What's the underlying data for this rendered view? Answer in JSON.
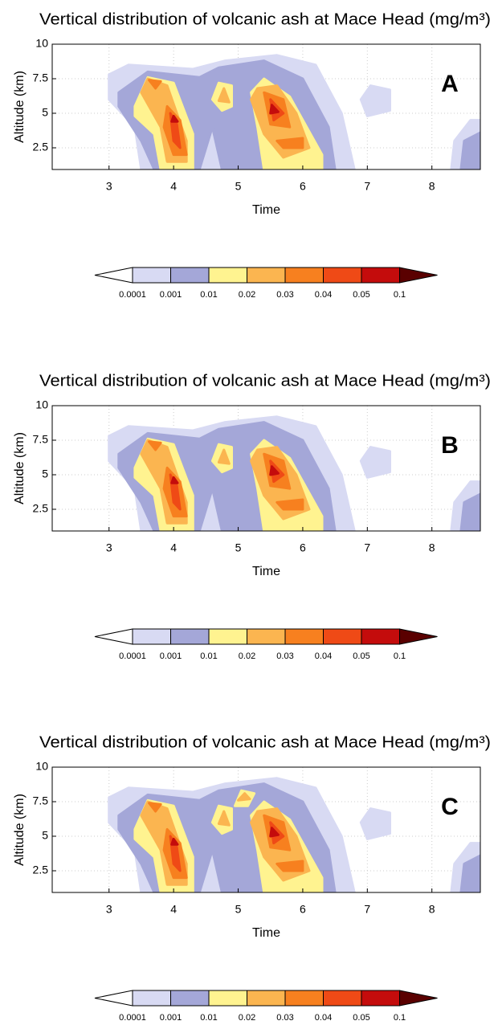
{
  "chart_data": [
    {
      "type": "contour",
      "title": "Vertical distribution of volcanic ash at Mace Head (mg/m³)",
      "panel_label": "A",
      "x_label": "Time",
      "y_label": "Altitude (km)",
      "xlim": [
        2.12,
        8.75
      ],
      "ylim": [
        0.93,
        10
      ],
      "xticks": [
        3,
        4,
        5,
        6,
        7,
        8
      ],
      "yticks": [
        2.5,
        5,
        7.5,
        10
      ],
      "grid": true,
      "levels": [
        0.0001,
        0.001,
        0.01,
        0.02,
        0.03,
        0.04,
        0.05,
        0.1
      ],
      "colors": [
        "#ffffff",
        "#d8daf3",
        "#a4a7d8",
        "#fff390",
        "#fbb550",
        "#f7801f",
        "#ef4a16",
        "#c40c0c",
        "#5a0000"
      ]
    },
    {
      "type": "contour",
      "title": "Vertical distribution of volcanic ash at Mace Head (mg/m³)",
      "panel_label": "B",
      "x_label": "Time",
      "y_label": "Altitude (km)",
      "xlim": [
        2.12,
        8.75
      ],
      "ylim": [
        0.93,
        10
      ],
      "xticks": [
        3,
        4,
        5,
        6,
        7,
        8
      ],
      "yticks": [
        2.5,
        5,
        7.5,
        10
      ],
      "grid": true,
      "levels": [
        0.0001,
        0.001,
        0.01,
        0.02,
        0.03,
        0.04,
        0.05,
        0.1
      ],
      "colors": [
        "#ffffff",
        "#d8daf3",
        "#a4a7d8",
        "#fff390",
        "#fbb550",
        "#f7801f",
        "#ef4a16",
        "#c40c0c",
        "#5a0000"
      ]
    },
    {
      "type": "contour",
      "title": "Vertical distribution of volcanic ash at Mace Head (mg/m³)",
      "panel_label": "C",
      "x_label": "Time",
      "y_label": "Altitude (km)",
      "xlim": [
        2.12,
        8.75
      ],
      "ylim": [
        0.93,
        10
      ],
      "xticks": [
        3,
        4,
        5,
        6,
        7,
        8
      ],
      "yticks": [
        2.5,
        5,
        7.5,
        10
      ],
      "grid": true,
      "levels": [
        0.0001,
        0.001,
        0.01,
        0.02,
        0.03,
        0.04,
        0.05,
        0.1
      ],
      "colors": [
        "#ffffff",
        "#d8daf3",
        "#a4a7d8",
        "#fff390",
        "#fbb550",
        "#f7801f",
        "#ef4a16",
        "#c40c0c",
        "#5a0000"
      ]
    }
  ]
}
